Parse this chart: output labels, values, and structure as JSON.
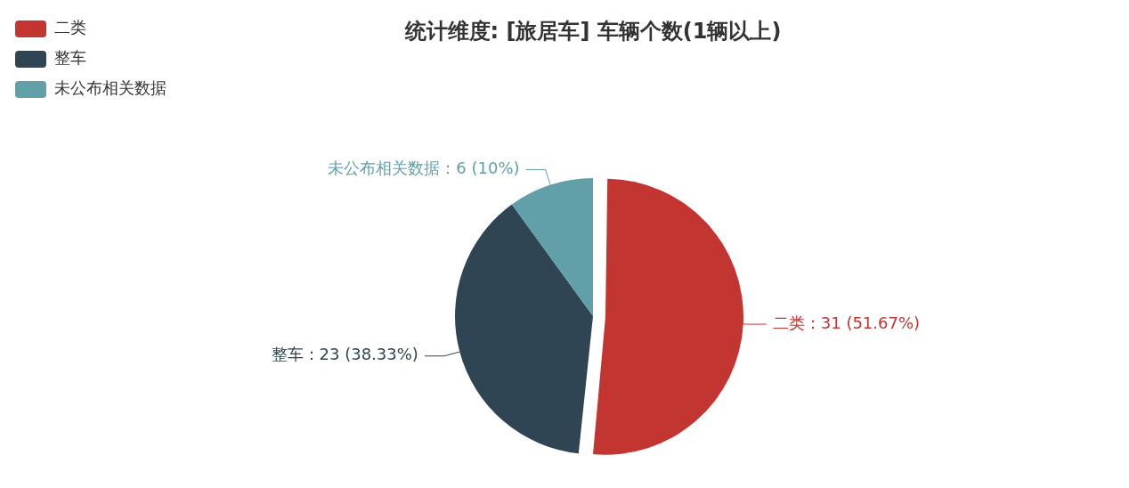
{
  "chart_data": {
    "type": "pie",
    "title": "统计维度: [旅居车] 车辆个数(1辆以上)",
    "categories": [
      "二类",
      "整车",
      "未公布相关数据"
    ],
    "values": [
      31,
      23,
      6
    ],
    "colors": [
      "#c23531",
      "#2f4554",
      "#61a0a8"
    ],
    "value_labels": [
      "二类：31 (51.67%)",
      "整车：23 (38.33%)",
      "未公布相关数据：6 (10%)"
    ],
    "legend": "top left"
  }
}
